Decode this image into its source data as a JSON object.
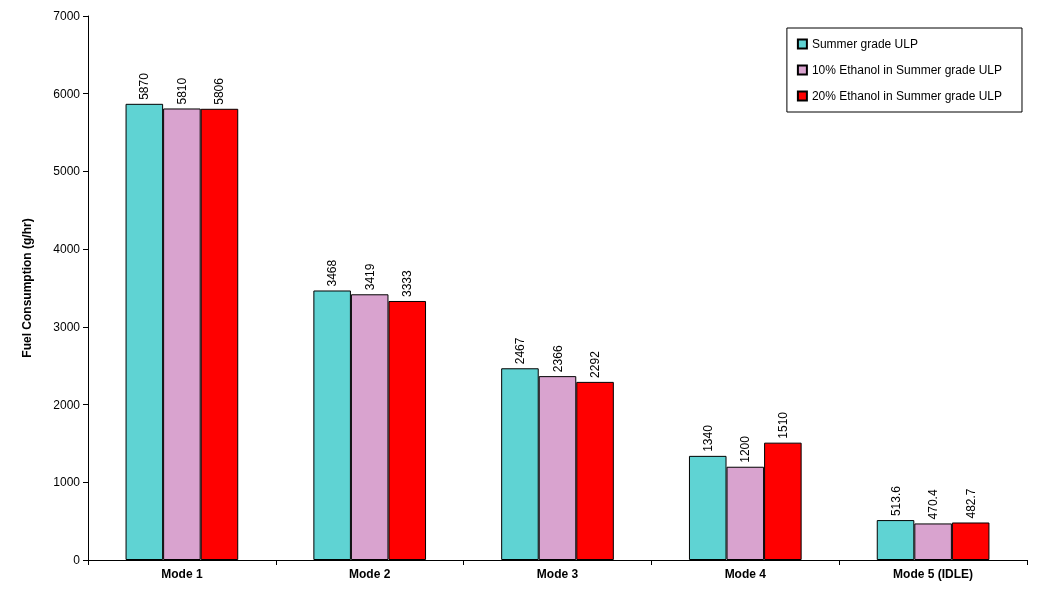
{
  "chart_data": {
    "type": "bar",
    "ylabel": "Fuel Consumption (g/hr)",
    "categories": [
      "Mode 1",
      "Mode 2",
      "Mode 3",
      "Mode 4",
      "Mode 5 (IDLE)"
    ],
    "series": [
      {
        "name": "Summer grade ULP",
        "color": "#5fd3d3",
        "values": [
          5870,
          3468,
          2467,
          1340,
          513.6
        ]
      },
      {
        "name": "10% Ethanol in Summer grade ULP",
        "color": "#d9a3cf",
        "values": [
          5810,
          3419,
          2366,
          1200,
          470.4
        ]
      },
      {
        "name": "20% Ethanol in Summer grade ULP",
        "color": "#ff0000",
        "values": [
          5806,
          3333,
          2292,
          1510,
          482.7
        ]
      }
    ],
    "ylim": [
      0,
      7000
    ],
    "yticks": [
      0,
      1000,
      2000,
      3000,
      4000,
      5000,
      6000,
      7000
    ],
    "data_labels": true,
    "legend": "top right",
    "grid": false
  }
}
